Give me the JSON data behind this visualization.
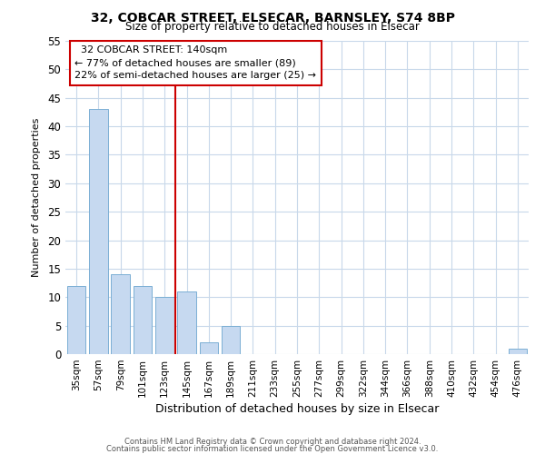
{
  "title": "32, COBCAR STREET, ELSECAR, BARNSLEY, S74 8BP",
  "subtitle": "Size of property relative to detached houses in Elsecar",
  "xlabel": "Distribution of detached houses by size in Elsecar",
  "ylabel": "Number of detached properties",
  "bar_labels": [
    "35sqm",
    "57sqm",
    "79sqm",
    "101sqm",
    "123sqm",
    "145sqm",
    "167sqm",
    "189sqm",
    "211sqm",
    "233sqm",
    "255sqm",
    "277sqm",
    "299sqm",
    "322sqm",
    "344sqm",
    "366sqm",
    "388sqm",
    "410sqm",
    "432sqm",
    "454sqm",
    "476sqm"
  ],
  "bar_values": [
    12,
    43,
    14,
    12,
    10,
    11,
    2,
    5,
    0,
    0,
    0,
    0,
    0,
    0,
    0,
    0,
    0,
    0,
    0,
    0,
    1
  ],
  "bar_color": "#c6d9f0",
  "bar_edge_color": "#7bafd4",
  "annotation_title": "32 COBCAR STREET: 140sqm",
  "annotation_line1": "← 77% of detached houses are smaller (89)",
  "annotation_line2": "22% of semi-detached houses are larger (25) →",
  "ylim": [
    0,
    55
  ],
  "yticks": [
    0,
    5,
    10,
    15,
    20,
    25,
    30,
    35,
    40,
    45,
    50,
    55
  ],
  "footer1": "Contains HM Land Registry data © Crown copyright and database right 2024.",
  "footer2": "Contains public sector information licensed under the Open Government Licence v3.0.",
  "bg_color": "#ffffff",
  "grid_color": "#c8d8ea",
  "ref_line_color": "#cc0000",
  "annotation_box_edge": "#cc0000",
  "ref_line_index": 4.5
}
